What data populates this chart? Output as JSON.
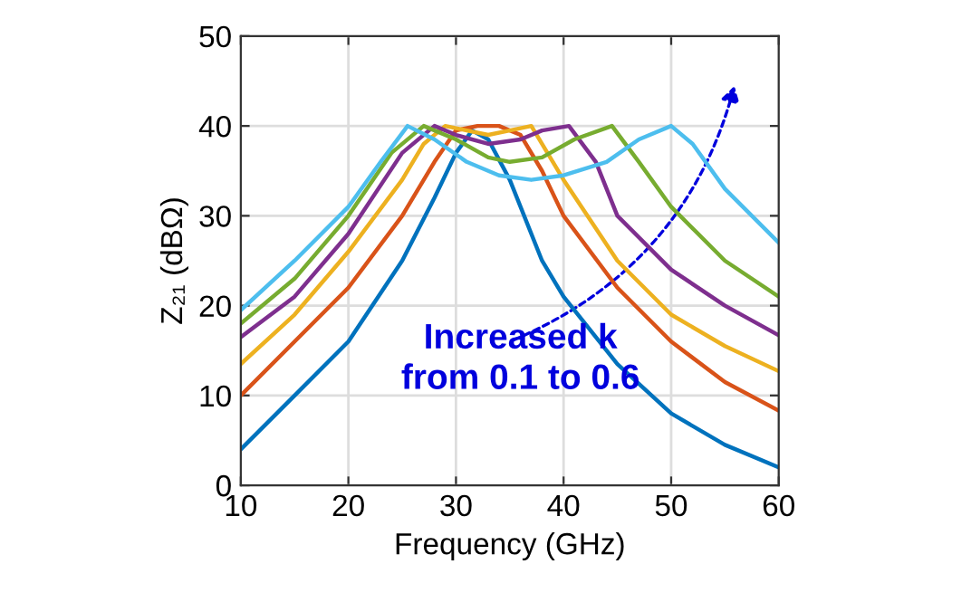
{
  "chart_data": {
    "type": "line",
    "xlabel": "Frequency (GHz)",
    "ylabel": "Z₂₁ (dBΩ)",
    "xlim": [
      10,
      60
    ],
    "ylim": [
      0,
      50
    ],
    "xticks": [
      10,
      20,
      30,
      40,
      50,
      60
    ],
    "yticks": [
      0,
      10,
      20,
      30,
      40,
      50
    ],
    "grid": true,
    "line_style": "solid",
    "series": [
      {
        "color": "#0072bd",
        "x": [
          10,
          15,
          20,
          25,
          28,
          30,
          31.5,
          33,
          35,
          38,
          40,
          45,
          50,
          55,
          60
        ],
        "values": [
          4,
          10,
          16,
          25,
          32,
          37,
          39.5,
          38.5,
          34,
          25,
          21,
          13.5,
          8,
          4.5,
          2
        ]
      },
      {
        "color": "#d95319",
        "x": [
          10,
          15,
          20,
          25,
          28,
          30,
          32,
          34,
          36,
          38,
          40,
          45,
          50,
          55,
          60
        ],
        "values": [
          10,
          16,
          22,
          30,
          36,
          39.5,
          40,
          40,
          39,
          35,
          30,
          22,
          16,
          11.5,
          8.3
        ]
      },
      {
        "color": "#edb120",
        "x": [
          10,
          15,
          20,
          25,
          27,
          29,
          31,
          33,
          35,
          37,
          40,
          45,
          50,
          55,
          60
        ],
        "values": [
          13.5,
          19,
          26,
          34,
          38,
          40,
          39.5,
          39,
          39.5,
          40,
          34,
          25,
          19,
          15.5,
          12.7
        ]
      },
      {
        "color": "#7e2f8e",
        "x": [
          10,
          15,
          20,
          25,
          28,
          30,
          33,
          36,
          38,
          40.5,
          43,
          45,
          50,
          55,
          60
        ],
        "values": [
          16.5,
          21,
          28,
          37,
          40,
          39,
          38,
          38.5,
          39.5,
          40,
          36,
          30,
          24,
          20,
          16.7
        ]
      },
      {
        "color": "#77ac30",
        "x": [
          10,
          15,
          20,
          24,
          27,
          30,
          33,
          35,
          38,
          41,
          44.5,
          47,
          50,
          55,
          60
        ],
        "values": [
          18,
          23,
          30,
          37,
          40,
          38.5,
          36.5,
          36,
          36.5,
          38.5,
          40,
          36,
          31,
          25,
          21
        ]
      },
      {
        "color": "#4dbeee",
        "x": [
          10,
          15,
          20,
          23,
          25.5,
          28,
          31,
          34,
          37,
          40,
          44,
          47,
          50,
          52,
          55,
          60
        ],
        "values": [
          19.5,
          25,
          31,
          36,
          40,
          38.5,
          36,
          34.5,
          34,
          34.5,
          36,
          38.5,
          40,
          38,
          33,
          27
        ]
      }
    ],
    "annotations": [
      "Increased k\nfrom 0.1 to 0.6"
    ]
  }
}
